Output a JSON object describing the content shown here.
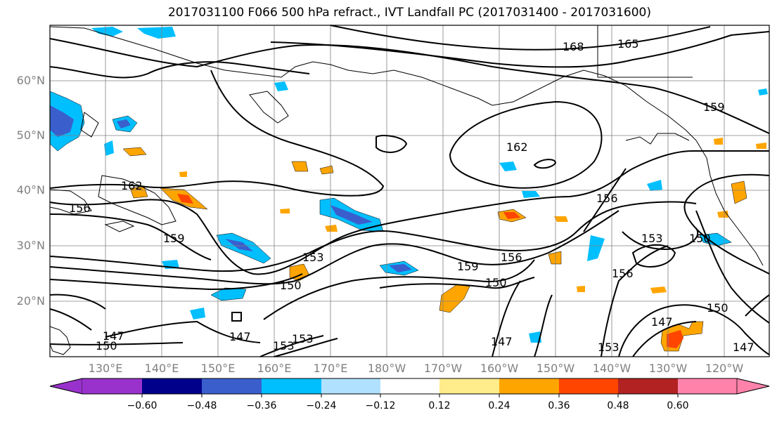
{
  "title": "2017031100 F066 500 hPa refract., IVT Landfall PC (2017031400 - 2017031600)",
  "map": {
    "lat_labels": [
      "60°N",
      "50°N",
      "40°N",
      "30°N",
      "20°N"
    ],
    "lon_labels": [
      "130°E",
      "140°E",
      "150°E",
      "160°E",
      "170°E",
      "180°W",
      "170°W",
      "160°W",
      "150°W",
      "140°W",
      "130°W",
      "120°W"
    ],
    "contour_labels": [
      "168",
      "165",
      "159",
      "162",
      "162",
      "156",
      "159",
      "153",
      "156",
      "159",
      "150",
      "153",
      "156",
      "150",
      "150",
      "147",
      "150",
      "147",
      "147",
      "153",
      "147",
      "156",
      "153",
      "153",
      "150",
      "147"
    ]
  },
  "colorbar": {
    "tick_labels": [
      "−0.60",
      "−0.48",
      "−0.36",
      "−0.24",
      "−0.12",
      "0.12",
      "0.24",
      "0.36",
      "0.48",
      "0.60"
    ],
    "colors": [
      "#9932cc",
      "#00008b",
      "#3a5fcd",
      "#00bfff",
      "#b0e2ff",
      "#ffffff",
      "#ffec8b",
      "#ffa500",
      "#ff4500",
      "#b22222",
      "#ff82ab"
    ]
  }
}
